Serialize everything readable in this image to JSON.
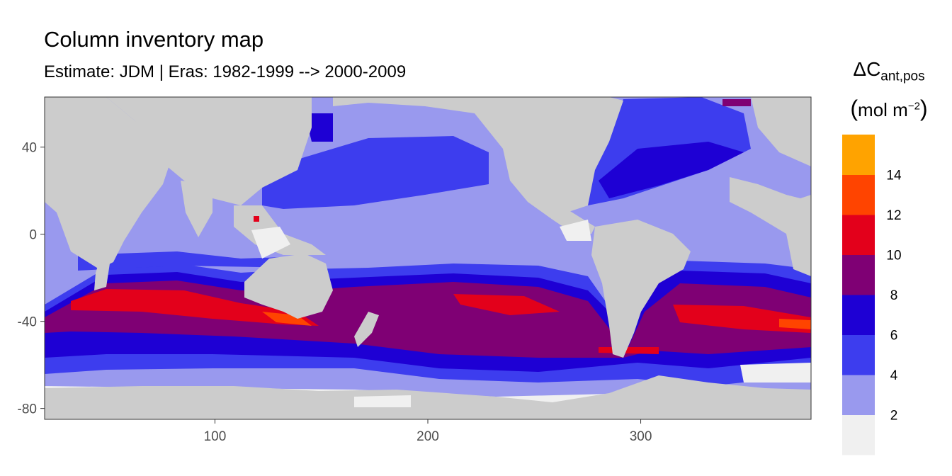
{
  "header": {
    "title": "Column inventory map",
    "subtitle": "Estimate: JDM  | Eras: 1982-1999 --> 2000-2009"
  },
  "legend": {
    "title_symbol": "ΔC",
    "title_sub": "ant,pos",
    "unit_open": "(",
    "unit_text": "mol m",
    "unit_exp": "−2",
    "unit_close": ")",
    "bins": [
      {
        "color": "#f0f0f0"
      },
      {
        "color": "#9999ee"
      },
      {
        "color": "#3d3dee"
      },
      {
        "color": "#1e00d4"
      },
      {
        "color": "#7f0074"
      },
      {
        "color": "#e3001b"
      },
      {
        "color": "#ff4400"
      },
      {
        "color": "#ffa300"
      }
    ],
    "labels": [
      "2",
      "4",
      "6",
      "8",
      "10",
      "12",
      "14"
    ]
  },
  "map": {
    "land_color": "#cccccc",
    "x_ticks": [
      "100",
      "200",
      "300"
    ],
    "y_ticks": [
      "40",
      "0",
      "-40",
      "-80"
    ]
  }
}
